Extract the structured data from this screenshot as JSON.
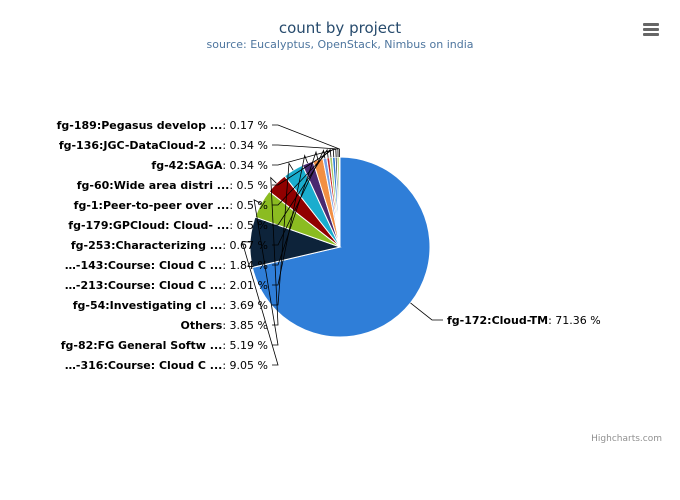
{
  "chart_data": {
    "type": "pie",
    "title": "count by project",
    "subtitle": "source: Eucalyptus, OpenStack, Nimbus on india",
    "slices": [
      {
        "label": "fg-172:Cloud-TM",
        "value": 71.36,
        "display": "71.36 %",
        "color": "#2f7ed8"
      },
      {
        "label": "…-316:Course: Cloud C ...",
        "value": 9.05,
        "display": "9.05 %",
        "color": "#0d233a"
      },
      {
        "label": "fg-82:FG General Softw ...",
        "value": 5.19,
        "display": "5.19 %",
        "color": "#8bbc21"
      },
      {
        "label": "Others",
        "value": 3.85,
        "display": "3.85 %",
        "color": "#910000"
      },
      {
        "label": "fg-54:Investigating cl ...",
        "value": 3.69,
        "display": "3.69 %",
        "color": "#1aadce"
      },
      {
        "label": "…-213:Course: Cloud C ...",
        "value": 2.01,
        "display": "2.01 %",
        "color": "#492970"
      },
      {
        "label": "…-143:Course: Cloud C ...",
        "value": 1.84,
        "display": "1.84 %",
        "color": "#f28f43"
      },
      {
        "label": "fg-253:Characterizing ...",
        "value": 0.67,
        "display": "0.67 %",
        "color": "#77a1e5"
      },
      {
        "label": "fg-179:GPCloud: Cloud- ...",
        "value": 0.5,
        "display": "0.5 %",
        "color": "#c42525"
      },
      {
        "label": "fg-1:Peer-to-peer over ...",
        "value": 0.5,
        "display": "0.5 %",
        "color": "#a6c96a"
      },
      {
        "label": "fg-60:Wide area distri ...",
        "value": 0.5,
        "display": "0.5 %",
        "color": "#2f7ed8"
      },
      {
        "label": "fg-42:SAGA",
        "value": 0.34,
        "display": "0.34 %",
        "color": "#0d233a"
      },
      {
        "label": "fg-136:JGC-DataCloud-2 ...",
        "value": 0.34,
        "display": "0.34 %",
        "color": "#8bbc21"
      },
      {
        "label": "fg-189:Pegasus develop ...",
        "value": 0.17,
        "display": "0.17 %",
        "color": "#910000"
      }
    ]
  },
  "credits": "Highcharts.com",
  "menu_icon": "hamburger-menu-icon"
}
